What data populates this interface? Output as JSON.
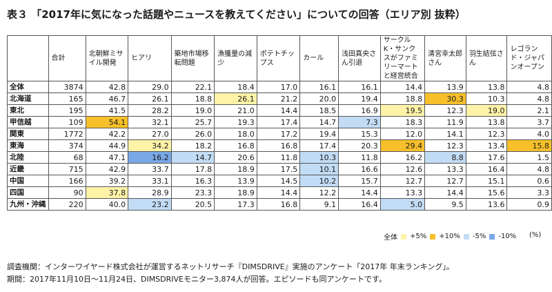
{
  "title": "表３ 「2017年に気になった話題やニュースを教えてください」についての回答（エリア別 抜粋）",
  "colors": {
    "plus5": "#fff3a8",
    "plus10": "#f7c02a",
    "minus5": "#c2dcf5",
    "minus10": "#7aa8e6"
  },
  "table": {
    "headers": [
      "",
      "合計",
      "北朝鮮ミサイル開発",
      "ヒアリ",
      "築地市場移転問題",
      "漁獲量の減少",
      "ポテトチップス",
      "カール",
      "浅田真央さん引退",
      "サークルK・サンクスがファミリーマートと経営統合",
      "清宮幸太郎さん",
      "羽生結弦さん",
      "レゴランド・ジャパンオープン"
    ],
    "rows": [
      {
        "region": "全体",
        "total": "3874",
        "values": [
          "42.8",
          "29.0",
          "22.1",
          "18.4",
          "17.0",
          "16.1",
          "16.1",
          "14.4",
          "13.9",
          "13.8",
          "4.8"
        ],
        "hl": [
          "",
          "",
          "",
          "",
          "",
          "",
          "",
          "",
          "",
          "",
          ""
        ]
      },
      {
        "region": "北海道",
        "total": "165",
        "values": [
          "46.7",
          "26.1",
          "18.8",
          "26.1",
          "21.2",
          "20.0",
          "19.4",
          "18.8",
          "30.3",
          "10.3",
          "4.8"
        ],
        "hl": [
          "",
          "",
          "",
          "p5",
          "",
          "",
          "",
          "",
          "p10",
          "",
          ""
        ]
      },
      {
        "region": "東北",
        "total": "195",
        "values": [
          "41.5",
          "28.2",
          "19.0",
          "21.0",
          "14.4",
          "18.5",
          "16.9",
          "19.5",
          "12.3",
          "19.0",
          "2.1"
        ],
        "hl": [
          "",
          "",
          "",
          "",
          "",
          "",
          "",
          "p5",
          "",
          "p5",
          ""
        ]
      },
      {
        "region": "甲信越",
        "total": "109",
        "values": [
          "54.1",
          "32.1",
          "25.7",
          "19.3",
          "17.4",
          "14.7",
          "7.3",
          "18.3",
          "11.9",
          "13.8",
          "3.7"
        ],
        "hl": [
          "p10",
          "",
          "",
          "",
          "",
          "",
          "m5",
          "",
          "",
          "",
          ""
        ]
      },
      {
        "region": "関東",
        "total": "1772",
        "values": [
          "42.2",
          "27.0",
          "26.0",
          "18.0",
          "17.2",
          "19.4",
          "15.3",
          "12.0",
          "14.1",
          "12.3",
          "4.0"
        ],
        "hl": [
          "",
          "",
          "",
          "",
          "",
          "",
          "",
          "",
          "",
          "",
          ""
        ]
      },
      {
        "region": "東海",
        "total": "374",
        "values": [
          "44.9",
          "34.2",
          "18.2",
          "16.8",
          "16.8",
          "17.4",
          "20.3",
          "29.4",
          "12.3",
          "13.4",
          "15.8"
        ],
        "hl": [
          "",
          "p5",
          "",
          "",
          "",
          "",
          "",
          "p10",
          "",
          "",
          "p10"
        ]
      },
      {
        "region": "北陸",
        "total": "68",
        "values": [
          "47.1",
          "16.2",
          "14.7",
          "20.6",
          "11.8",
          "10.3",
          "11.8",
          "16.2",
          "8.8",
          "17.6",
          "1.5"
        ],
        "hl": [
          "",
          "m10",
          "m5",
          "",
          "",
          "m5",
          "",
          "",
          "m5",
          "",
          ""
        ]
      },
      {
        "region": "近畿",
        "total": "715",
        "values": [
          "42.9",
          "33.7",
          "17.8",
          "18.9",
          "17.5",
          "10.1",
          "16.6",
          "12.6",
          "13.3",
          "16.4",
          "4.8"
        ],
        "hl": [
          "",
          "",
          "",
          "",
          "",
          "m5",
          "",
          "",
          "",
          "",
          ""
        ]
      },
      {
        "region": "中国",
        "total": "166",
        "values": [
          "39.2",
          "33.1",
          "16.3",
          "13.9",
          "14.5",
          "10.2",
          "15.7",
          "12.7",
          "12.7",
          "15.1",
          "0.6"
        ],
        "hl": [
          "",
          "",
          "",
          "",
          "",
          "m5",
          "",
          "",
          "",
          "",
          ""
        ]
      },
      {
        "region": "四国",
        "total": "90",
        "values": [
          "37.8",
          "28.9",
          "23.3",
          "18.9",
          "14.4",
          "12.2",
          "14.4",
          "13.3",
          "14.4",
          "15.6",
          "3.3"
        ],
        "hl": [
          "p5",
          "",
          "",
          "",
          "",
          "",
          "",
          "",
          "",
          "",
          ""
        ]
      },
      {
        "region": "九州・沖縄",
        "total": "220",
        "values": [
          "40.0",
          "23.2",
          "20.5",
          "17.3",
          "16.8",
          "9.1",
          "16.4",
          "5.0",
          "9.5",
          "13.6",
          "0.9"
        ],
        "hl": [
          "",
          "m5",
          "",
          "",
          "",
          "",
          "",
          "m5",
          "",
          "",
          ""
        ]
      }
    ]
  },
  "legend": {
    "base": "全体",
    "items": [
      "+5%",
      "+10%",
      "-5%",
      "-10%"
    ],
    "unit": "(%)"
  },
  "footnotes": [
    "調査機関：インターワイヤード株式会社が運営するネットリサーチ『DIMSDRIVE』実施のアンケート「2017年 年末ランキング」。",
    "期間：2017年11月10日～11月24日、DIMSDRIVEモニター3,874人が回答。エピソードも同アンケートです。"
  ]
}
